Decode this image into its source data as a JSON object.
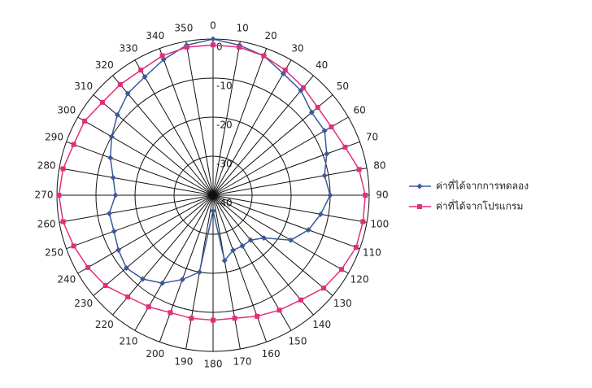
{
  "chart_data": {
    "type": "polar",
    "categories": [
      "0",
      "10",
      "20",
      "30",
      "40",
      "50",
      "60",
      "70",
      "80",
      "90",
      "100",
      "110",
      "120",
      "130",
      "140",
      "150",
      "160",
      "170",
      "180",
      "190",
      "200",
      "210",
      "220",
      "230",
      "240",
      "250",
      "260",
      "270",
      "280",
      "290",
      "300",
      "310",
      "320",
      "330",
      "340",
      "350"
    ],
    "rlim": [
      -40,
      0
    ],
    "rticks": [
      -40,
      -30,
      -20,
      -10,
      0
    ],
    "series": [
      {
        "name": "ค่าที่ได้จากการทดลอง",
        "color": "#3a5a9a",
        "marker": "diamond",
        "values": [
          0,
          -1,
          -2,
          -4,
          -5,
          -7,
          -7,
          -9,
          -11,
          -10,
          -12,
          -14,
          -17,
          -23,
          -25,
          -25,
          -25,
          -23,
          -36,
          -20,
          -17,
          -14,
          -12,
          -11,
          -12,
          -13,
          -13,
          -15,
          -14,
          -12,
          -10,
          -8,
          -6,
          -5,
          -3,
          -1
        ]
      },
      {
        "name": "ค่าที่ได้จากโปรแกรม",
        "color": "#e0307a",
        "marker": "square",
        "values": [
          -1.5,
          -1.5,
          -2,
          -3,
          -4,
          -5,
          -5,
          -4,
          -2,
          -1,
          -1,
          -1,
          -2,
          -3,
          -5,
          -6,
          -7,
          -8,
          -8,
          -8,
          -8,
          -7,
          -6,
          -4,
          -3,
          -2,
          -1,
          -0.5,
          -1,
          -2,
          -2,
          -3,
          -3,
          -3,
          -2,
          -1.5
        ]
      }
    ],
    "grid": true,
    "legend": "right"
  }
}
